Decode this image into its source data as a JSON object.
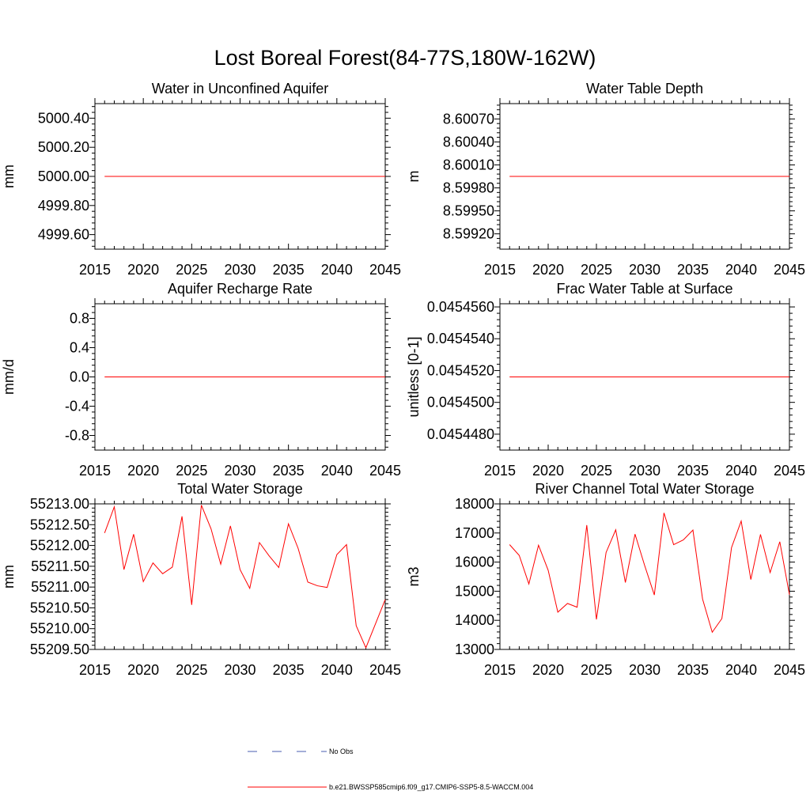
{
  "title": "Lost Boreal Forest(84-77S,180W-162W)",
  "colors": {
    "model": "#ff0000",
    "obs": "#4a5db0",
    "axis": "#000000",
    "background": "#ffffff"
  },
  "legend": {
    "obs_label": "No Obs",
    "model_label": "b.e21.BWSSP585cmip6.f09_g17.CMIP6-SSP5-8.5-WACCM.004"
  },
  "chart_data": [
    {
      "type": "line",
      "title": "Water in Unconfined Aquifer",
      "ylabel": "mm",
      "xlim": [
        2015,
        2045
      ],
      "ylim": [
        4999.5,
        5000.5
      ],
      "xticks": [
        2015,
        2020,
        2025,
        2030,
        2035,
        2040,
        2045
      ],
      "xtick_labels": [
        "2015",
        "2020",
        "2025",
        "2030",
        "2035",
        "2040",
        "2045"
      ],
      "yticks": [
        4999.6,
        4999.8,
        5000.0,
        5000.2,
        5000.4
      ],
      "ytick_labels": [
        "4999.60",
        "4999.80",
        "5000.00",
        "5000.20",
        "5000.40"
      ],
      "series": [
        {
          "name": "b.e21.BWSSP585cmip6.f09_g17.CMIP6-SSP5-8.5-WACCM.004",
          "x": [
            2016,
            2017,
            2018,
            2019,
            2020,
            2021,
            2022,
            2023,
            2024,
            2025,
            2026,
            2027,
            2028,
            2029,
            2030,
            2031,
            2032,
            2033,
            2034,
            2035,
            2036,
            2037,
            2038,
            2039,
            2040,
            2041,
            2042,
            2043,
            2044,
            2045
          ],
          "y": [
            5000,
            5000,
            5000,
            5000,
            5000,
            5000,
            5000,
            5000,
            5000,
            5000,
            5000,
            5000,
            5000,
            5000,
            5000,
            5000,
            5000,
            5000,
            5000,
            5000,
            5000,
            5000,
            5000,
            5000,
            5000,
            5000,
            5000,
            5000,
            5000,
            5000
          ]
        }
      ]
    },
    {
      "type": "line",
      "title": "Water Table Depth",
      "ylabel": "m",
      "xlim": [
        2015,
        2045
      ],
      "ylim": [
        8.599,
        8.6009
      ],
      "xticks": [
        2015,
        2020,
        2025,
        2030,
        2035,
        2040,
        2045
      ],
      "xtick_labels": [
        "2015",
        "2020",
        "2025",
        "2030",
        "2035",
        "2040",
        "2045"
      ],
      "yticks": [
        8.5992,
        8.5995,
        8.5998,
        8.6001,
        8.6004,
        8.6007
      ],
      "ytick_labels": [
        "8.59920",
        "8.59950",
        "8.59980",
        "8.60010",
        "8.60040",
        "8.60070"
      ],
      "series": [
        {
          "name": "b.e21.BWSSP585cmip6.f09_g17.CMIP6-SSP5-8.5-WACCM.004",
          "x": [
            2016,
            2017,
            2018,
            2019,
            2020,
            2021,
            2022,
            2023,
            2024,
            2025,
            2026,
            2027,
            2028,
            2029,
            2030,
            2031,
            2032,
            2033,
            2034,
            2035,
            2036,
            2037,
            2038,
            2039,
            2040,
            2041,
            2042,
            2043,
            2044,
            2045
          ],
          "y": [
            8.59995,
            8.59995,
            8.59995,
            8.59995,
            8.59995,
            8.59995,
            8.59995,
            8.59995,
            8.59995,
            8.59995,
            8.59995,
            8.59995,
            8.59995,
            8.59995,
            8.59995,
            8.59995,
            8.59995,
            8.59995,
            8.59995,
            8.59995,
            8.59995,
            8.59995,
            8.59995,
            8.59995,
            8.59995,
            8.59995,
            8.59995,
            8.59995,
            8.59995,
            8.59995
          ]
        }
      ]
    },
    {
      "type": "line",
      "title": "Aquifer Recharge Rate",
      "ylabel": "mm/d",
      "xlim": [
        2015,
        2045
      ],
      "ylim": [
        -1.0,
        1.0
      ],
      "xticks": [
        2015,
        2020,
        2025,
        2030,
        2035,
        2040,
        2045
      ],
      "xtick_labels": [
        "2015",
        "2020",
        "2025",
        "2030",
        "2035",
        "2040",
        "2045"
      ],
      "yticks": [
        -0.8,
        -0.4,
        0.0,
        0.4,
        0.8
      ],
      "ytick_labels": [
        "-0.8",
        "-0.4",
        "0.0",
        "0.4",
        "0.8"
      ],
      "series": [
        {
          "name": "b.e21.BWSSP585cmip6.f09_g17.CMIP6-SSP5-8.5-WACCM.004",
          "x": [
            2016,
            2017,
            2018,
            2019,
            2020,
            2021,
            2022,
            2023,
            2024,
            2025,
            2026,
            2027,
            2028,
            2029,
            2030,
            2031,
            2032,
            2033,
            2034,
            2035,
            2036,
            2037,
            2038,
            2039,
            2040,
            2041,
            2042,
            2043,
            2044,
            2045
          ],
          "y": [
            0,
            0,
            0,
            0,
            0,
            0,
            0,
            0,
            0,
            0,
            0,
            0,
            0,
            0,
            0,
            0,
            0,
            0,
            0,
            0,
            0,
            0,
            0,
            0,
            0,
            0,
            0,
            0,
            0,
            0
          ]
        }
      ]
    },
    {
      "type": "line",
      "title": "Frac Water Table at Surface",
      "ylabel": "unitless [0-1]",
      "xlim": [
        2015,
        2045
      ],
      "ylim": [
        0.045447,
        0.0454562
      ],
      "xticks": [
        2015,
        2020,
        2025,
        2030,
        2035,
        2040,
        2045
      ],
      "xtick_labels": [
        "2015",
        "2020",
        "2025",
        "2030",
        "2035",
        "2040",
        "2045"
      ],
      "yticks": [
        0.045448,
        0.04545,
        0.045452,
        0.045454,
        0.045456
      ],
      "ytick_labels": [
        "0.0454480",
        "0.0454500",
        "0.0454520",
        "0.0454540",
        "0.0454560"
      ],
      "series": [
        {
          "name": "b.e21.BWSSP585cmip6.f09_g17.CMIP6-SSP5-8.5-WACCM.004",
          "x": [
            2016,
            2017,
            2018,
            2019,
            2020,
            2021,
            2022,
            2023,
            2024,
            2025,
            2026,
            2027,
            2028,
            2029,
            2030,
            2031,
            2032,
            2033,
            2034,
            2035,
            2036,
            2037,
            2038,
            2039,
            2040,
            2041,
            2042,
            2043,
            2044,
            2045
          ],
          "y": [
            0.0454516,
            0.0454516,
            0.0454516,
            0.0454516,
            0.0454516,
            0.0454516,
            0.0454516,
            0.0454516,
            0.0454516,
            0.0454516,
            0.0454516,
            0.0454516,
            0.0454516,
            0.0454516,
            0.0454516,
            0.0454516,
            0.0454516,
            0.0454516,
            0.0454516,
            0.0454516,
            0.0454516,
            0.0454516,
            0.0454516,
            0.0454516,
            0.0454516,
            0.0454516,
            0.0454516,
            0.0454516,
            0.0454516,
            0.0454516
          ]
        }
      ]
    },
    {
      "type": "line",
      "title": "Total Water Storage",
      "ylabel": "mm",
      "xlim": [
        2015,
        2045
      ],
      "ylim": [
        55209.5,
        55213.0
      ],
      "xticks": [
        2015,
        2020,
        2025,
        2030,
        2035,
        2040,
        2045
      ],
      "xtick_labels": [
        "2015",
        "2020",
        "2025",
        "2030",
        "2035",
        "2040",
        "2045"
      ],
      "yticks": [
        55209.5,
        55210.0,
        55210.5,
        55211.0,
        55211.5,
        55212.0,
        55212.5,
        55213.0
      ],
      "ytick_labels": [
        "55209.50",
        "55210.00",
        "55210.50",
        "55211.00",
        "55211.50",
        "55212.00",
        "55212.50",
        "55213.00"
      ],
      "series": [
        {
          "name": "b.e21.BWSSP585cmip6.f09_g17.CMIP6-SSP5-8.5-WACCM.004",
          "x": [
            2016,
            2017,
            2018,
            2019,
            2020,
            2021,
            2022,
            2023,
            2024,
            2025,
            2026,
            2027,
            2028,
            2029,
            2030,
            2031,
            2032,
            2033,
            2034,
            2035,
            2036,
            2037,
            2038,
            2039,
            2040,
            2041,
            2042,
            2043,
            2044,
            2045
          ],
          "y": [
            55212.3,
            55212.93,
            55211.42,
            55212.27,
            55211.13,
            55211.58,
            55211.32,
            55211.48,
            55212.7,
            55210.57,
            55212.97,
            55212.4,
            55211.55,
            55212.47,
            55211.42,
            55210.97,
            55212.07,
            55211.75,
            55211.47,
            55212.52,
            55211.93,
            55211.12,
            55211.03,
            55210.99,
            55211.78,
            55212.02,
            55210.07,
            55209.54,
            55210.12,
            55210.7
          ]
        }
      ]
    },
    {
      "type": "line",
      "title": "River Channel Total Water Storage",
      "ylabel": "m3",
      "xlim": [
        2015,
        2045
      ],
      "ylim": [
        13000,
        18000
      ],
      "xticks": [
        2015,
        2020,
        2025,
        2030,
        2035,
        2040,
        2045
      ],
      "xtick_labels": [
        "2015",
        "2020",
        "2025",
        "2030",
        "2035",
        "2040",
        "2045"
      ],
      "yticks": [
        13000,
        14000,
        15000,
        16000,
        17000,
        18000
      ],
      "ytick_labels": [
        "13000",
        "14000",
        "15000",
        "16000",
        "17000",
        "18000"
      ],
      "series": [
        {
          "name": "b.e21.BWSSP585cmip6.f09_g17.CMIP6-SSP5-8.5-WACCM.004",
          "x": [
            2016,
            2017,
            2018,
            2019,
            2020,
            2021,
            2022,
            2023,
            2024,
            2025,
            2026,
            2027,
            2028,
            2029,
            2030,
            2031,
            2032,
            2033,
            2034,
            2035,
            2036,
            2037,
            2038,
            2039,
            2040,
            2041,
            2042,
            2043,
            2044,
            2045
          ],
          "y": [
            16600,
            16230,
            15250,
            16580,
            15720,
            14280,
            14580,
            14450,
            17270,
            14030,
            16330,
            17110,
            15300,
            16960,
            15880,
            14870,
            17690,
            16600,
            16760,
            17100,
            14730,
            13590,
            14060,
            16500,
            17410,
            15400,
            16950,
            15640,
            16700,
            14880
          ]
        }
      ]
    }
  ]
}
